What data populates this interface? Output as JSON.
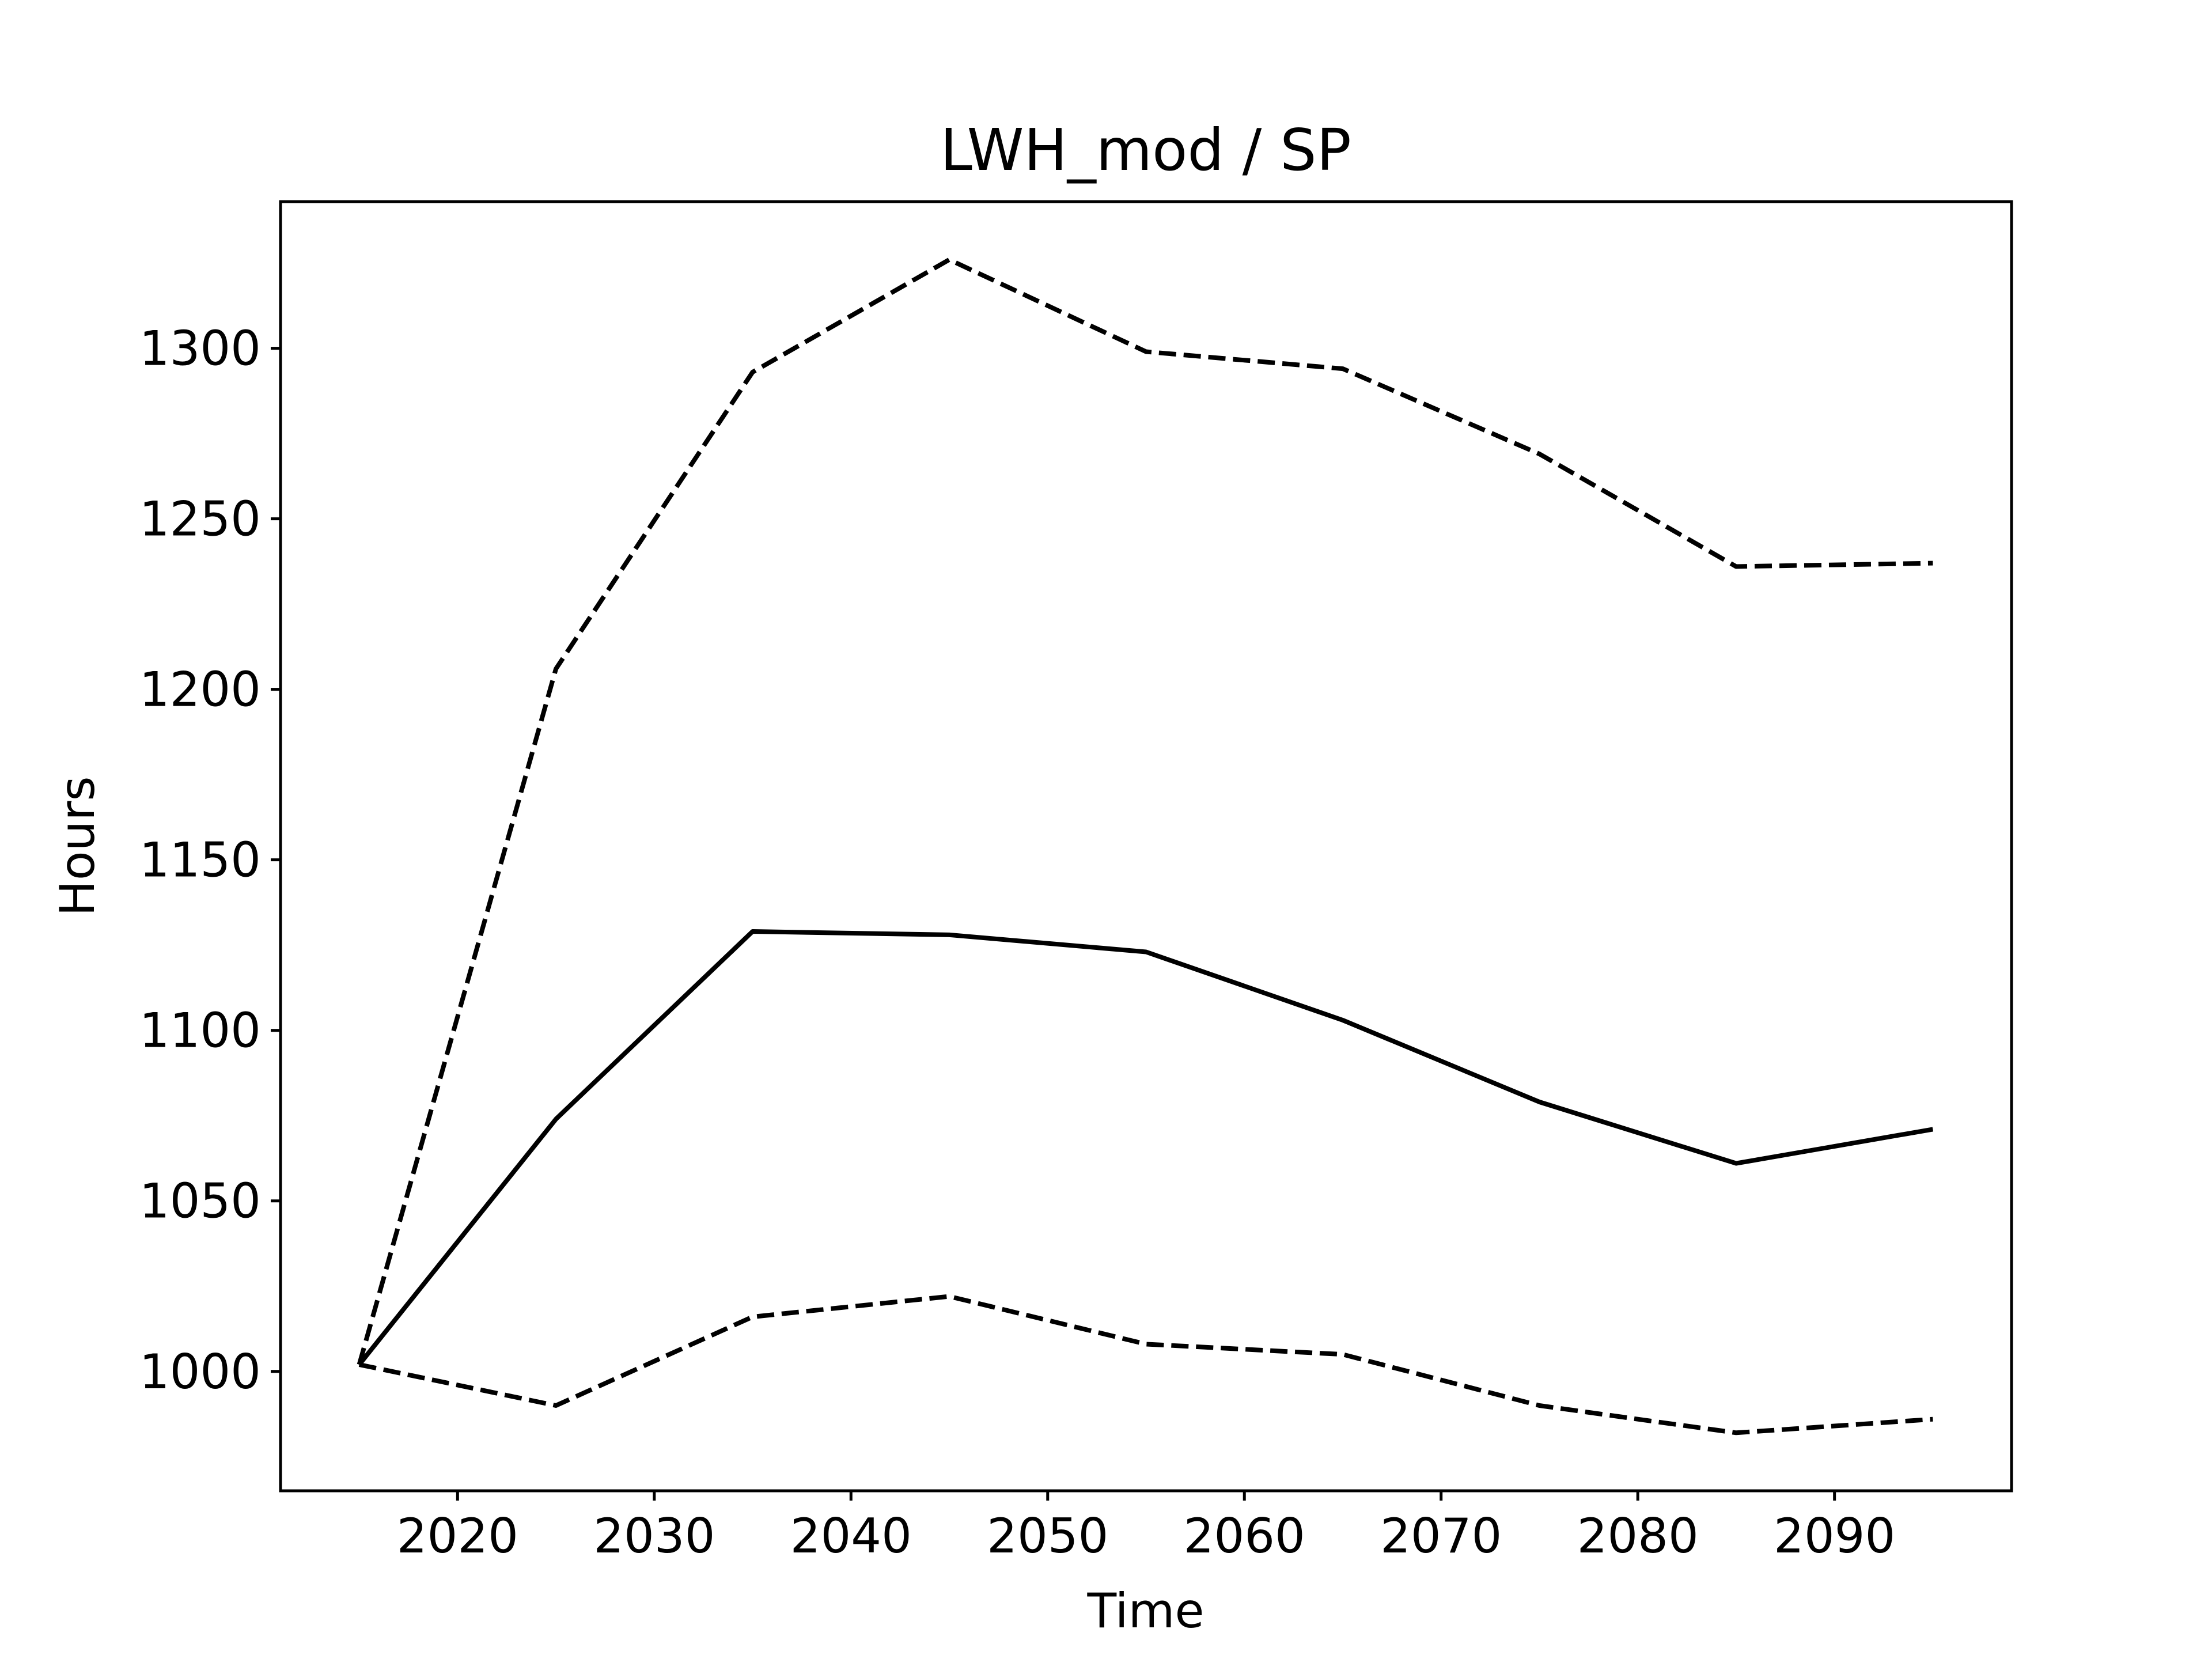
{
  "chart_data": {
    "type": "line",
    "title": "LWH_mod / SP",
    "xlabel": "Time",
    "ylabel": "Hours",
    "xlim": [
      2011,
      2099
    ],
    "ylim": [
      965,
      1343
    ],
    "xticks": [
      2020,
      2030,
      2040,
      2050,
      2060,
      2070,
      2080,
      2090
    ],
    "yticks": [
      1000,
      1050,
      1100,
      1150,
      1200,
      1250,
      1300
    ],
    "grid": false,
    "legend": "none",
    "x": [
      2015,
      2025,
      2035,
      2045,
      2055,
      2065,
      2075,
      2085,
      2095
    ],
    "series": [
      {
        "style": "solid",
        "color": "#000000",
        "values": [
          1002,
          1074,
          1129,
          1128,
          1123,
          1103,
          1079,
          1061,
          1071
        ]
      },
      {
        "style": "dashed",
        "color": "#000000",
        "values": [
          1002,
          1206,
          1293,
          1326,
          1299,
          1294,
          1269,
          1236,
          1237
        ]
      },
      {
        "style": "dashed",
        "color": "#000000",
        "values": [
          1002,
          990,
          1016,
          1022,
          1008,
          1005,
          990,
          982,
          986
        ]
      }
    ]
  }
}
